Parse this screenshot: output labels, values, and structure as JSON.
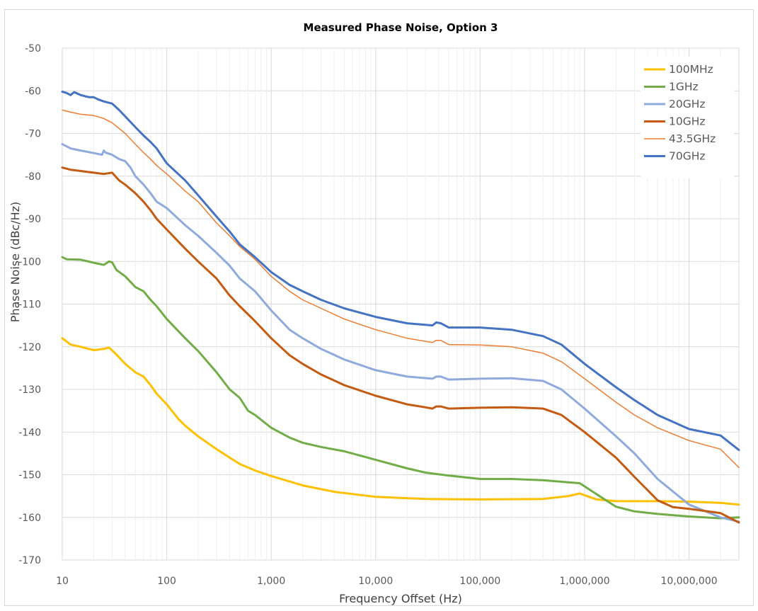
{
  "chart_data": {
    "type": "line",
    "title": "Measured Phase Noise, Option 3",
    "xlabel": "Frequency Offset (Hz)",
    "ylabel": "Phase Noise (dBc/Hz)",
    "x_scale": "log",
    "xlim": [
      10,
      30000000
    ],
    "ylim": [
      -170,
      -50
    ],
    "x_tick_values": [
      10,
      100,
      1000,
      10000,
      100000,
      1000000,
      10000000
    ],
    "x_tick_labels": [
      "10",
      "100",
      "1,000",
      "10,000",
      "100,000",
      "1,000,000",
      "10,000,000"
    ],
    "y_ticks": [
      -50,
      -60,
      -70,
      -80,
      -90,
      -100,
      -110,
      -120,
      -130,
      -140,
      -150,
      -160,
      -170
    ],
    "grid": true,
    "legend_position": "top-right",
    "series": [
      {
        "name": "100MHz",
        "color": "#ffc000",
        "width": 3,
        "points": [
          [
            10,
            -118
          ],
          [
            12,
            -119.5
          ],
          [
            15,
            -120
          ],
          [
            20,
            -120.8
          ],
          [
            25,
            -120.5
          ],
          [
            28,
            -120.2
          ],
          [
            32,
            -121.5
          ],
          [
            40,
            -124
          ],
          [
            50,
            -126
          ],
          [
            60,
            -127
          ],
          [
            70,
            -129
          ],
          [
            80,
            -131
          ],
          [
            100,
            -133.5
          ],
          [
            130,
            -137
          ],
          [
            150,
            -138.5
          ],
          [
            200,
            -141
          ],
          [
            300,
            -144
          ],
          [
            400,
            -146
          ],
          [
            500,
            -147.5
          ],
          [
            700,
            -149
          ],
          [
            1000,
            -150.3
          ],
          [
            2000,
            -152.5
          ],
          [
            4000,
            -154
          ],
          [
            10000,
            -155.2
          ],
          [
            30000,
            -155.7
          ],
          [
            100000,
            -155.8
          ],
          [
            400000,
            -155.7
          ],
          [
            700000,
            -155
          ],
          [
            900000,
            -154.4
          ],
          [
            1000000,
            -154.8
          ],
          [
            1300000,
            -155.8
          ],
          [
            2000000,
            -156.2
          ],
          [
            5000000,
            -156.2
          ],
          [
            10000000,
            -156.3
          ],
          [
            20000000,
            -156.6
          ],
          [
            30000000,
            -157
          ]
        ]
      },
      {
        "name": "1GHz",
        "color": "#70ad47",
        "width": 3,
        "points": [
          [
            10,
            -99
          ],
          [
            11,
            -99.5
          ],
          [
            15,
            -99.6
          ],
          [
            20,
            -100.3
          ],
          [
            25,
            -100.8
          ],
          [
            28,
            -100
          ],
          [
            30,
            -100.2
          ],
          [
            33,
            -102
          ],
          [
            40,
            -103.5
          ],
          [
            50,
            -106
          ],
          [
            60,
            -107
          ],
          [
            70,
            -109
          ],
          [
            80,
            -110.5
          ],
          [
            100,
            -113.5
          ],
          [
            150,
            -118
          ],
          [
            200,
            -121
          ],
          [
            300,
            -126
          ],
          [
            400,
            -130
          ],
          [
            500,
            -132
          ],
          [
            600,
            -135
          ],
          [
            700,
            -136
          ],
          [
            1000,
            -139
          ],
          [
            1500,
            -141.3
          ],
          [
            2000,
            -142.5
          ],
          [
            3000,
            -143.5
          ],
          [
            5000,
            -144.5
          ],
          [
            10000,
            -146.5
          ],
          [
            20000,
            -148.5
          ],
          [
            30000,
            -149.5
          ],
          [
            50000,
            -150.2
          ],
          [
            100000,
            -151
          ],
          [
            200000,
            -151
          ],
          [
            400000,
            -151.3
          ],
          [
            700000,
            -151.8
          ],
          [
            900000,
            -152
          ],
          [
            1200000,
            -154
          ],
          [
            2000000,
            -157.5
          ],
          [
            3000000,
            -158.6
          ],
          [
            5000000,
            -159.2
          ],
          [
            10000000,
            -159.8
          ],
          [
            20000000,
            -160.2
          ],
          [
            30000000,
            -160
          ]
        ]
      },
      {
        "name": "20GHz",
        "color": "#8faadc",
        "width": 3,
        "points": [
          [
            10,
            -72.5
          ],
          [
            12,
            -73.5
          ],
          [
            15,
            -74
          ],
          [
            20,
            -74.6
          ],
          [
            24,
            -75
          ],
          [
            25,
            -74
          ],
          [
            26,
            -74.5
          ],
          [
            30,
            -75
          ],
          [
            35,
            -76
          ],
          [
            40,
            -76.5
          ],
          [
            45,
            -78
          ],
          [
            50,
            -80
          ],
          [
            60,
            -82
          ],
          [
            70,
            -84
          ],
          [
            80,
            -86
          ],
          [
            100,
            -87.5
          ],
          [
            150,
            -91.5
          ],
          [
            200,
            -94
          ],
          [
            300,
            -98
          ],
          [
            400,
            -101
          ],
          [
            500,
            -104
          ],
          [
            700,
            -107
          ],
          [
            1000,
            -111.5
          ],
          [
            1500,
            -116
          ],
          [
            2000,
            -118
          ],
          [
            3000,
            -120.5
          ],
          [
            5000,
            -123
          ],
          [
            10000,
            -125.5
          ],
          [
            20000,
            -127
          ],
          [
            35000,
            -127.5
          ],
          [
            38000,
            -127
          ],
          [
            42000,
            -127
          ],
          [
            50000,
            -127.7
          ],
          [
            100000,
            -127.5
          ],
          [
            200000,
            -127.4
          ],
          [
            400000,
            -128
          ],
          [
            600000,
            -130
          ],
          [
            1000000,
            -134.5
          ],
          [
            2000000,
            -141
          ],
          [
            3000000,
            -145
          ],
          [
            5000000,
            -151
          ],
          [
            10000000,
            -157
          ],
          [
            20000000,
            -160
          ],
          [
            30000000,
            -161
          ]
        ]
      },
      {
        "name": "10GHz",
        "color": "#c55a11",
        "width": 3,
        "points": [
          [
            10,
            -78
          ],
          [
            12,
            -78.5
          ],
          [
            15,
            -78.8
          ],
          [
            20,
            -79.2
          ],
          [
            25,
            -79.5
          ],
          [
            30,
            -79.2
          ],
          [
            35,
            -81
          ],
          [
            40,
            -82
          ],
          [
            50,
            -84
          ],
          [
            60,
            -86
          ],
          [
            70,
            -88
          ],
          [
            80,
            -90
          ],
          [
            100,
            -92.5
          ],
          [
            150,
            -97
          ],
          [
            200,
            -100
          ],
          [
            300,
            -104
          ],
          [
            400,
            -108
          ],
          [
            500,
            -110.5
          ],
          [
            700,
            -114
          ],
          [
            1000,
            -118
          ],
          [
            1500,
            -122
          ],
          [
            2000,
            -124
          ],
          [
            3000,
            -126.5
          ],
          [
            5000,
            -129
          ],
          [
            10000,
            -131.5
          ],
          [
            20000,
            -133.5
          ],
          [
            30000,
            -134.2
          ],
          [
            35000,
            -134.5
          ],
          [
            38000,
            -134
          ],
          [
            42000,
            -134
          ],
          [
            50000,
            -134.5
          ],
          [
            100000,
            -134.3
          ],
          [
            200000,
            -134.2
          ],
          [
            400000,
            -134.5
          ],
          [
            600000,
            -136
          ],
          [
            1000000,
            -140
          ],
          [
            2000000,
            -146
          ],
          [
            3000000,
            -150.5
          ],
          [
            5000000,
            -156
          ],
          [
            7000000,
            -157.6
          ],
          [
            10000000,
            -158
          ],
          [
            20000000,
            -159
          ],
          [
            30000000,
            -161.2
          ]
        ]
      },
      {
        "name": "43.5GHz",
        "color": "#ed7d31",
        "width": 1.5,
        "points": [
          [
            10,
            -64.5
          ],
          [
            12,
            -65
          ],
          [
            15,
            -65.5
          ],
          [
            20,
            -65.8
          ],
          [
            25,
            -66.5
          ],
          [
            30,
            -67.5
          ],
          [
            40,
            -70
          ],
          [
            50,
            -72.5
          ],
          [
            60,
            -74.5
          ],
          [
            70,
            -76
          ],
          [
            80,
            -77.5
          ],
          [
            100,
            -79.5
          ],
          [
            150,
            -83.5
          ],
          [
            200,
            -86
          ],
          [
            300,
            -91
          ],
          [
            400,
            -94
          ],
          [
            500,
            -96.5
          ],
          [
            700,
            -99.5
          ],
          [
            1000,
            -103.5
          ],
          [
            1500,
            -107
          ],
          [
            2000,
            -109
          ],
          [
            3000,
            -111
          ],
          [
            5000,
            -113.5
          ],
          [
            10000,
            -116
          ],
          [
            20000,
            -118
          ],
          [
            35000,
            -119
          ],
          [
            38000,
            -118.5
          ],
          [
            42000,
            -118.5
          ],
          [
            50000,
            -119.5
          ],
          [
            100000,
            -119.6
          ],
          [
            200000,
            -120
          ],
          [
            400000,
            -121.5
          ],
          [
            600000,
            -123.5
          ],
          [
            1000000,
            -127.5
          ],
          [
            2000000,
            -133
          ],
          [
            3000000,
            -136
          ],
          [
            5000000,
            -139
          ],
          [
            10000000,
            -142
          ],
          [
            20000000,
            -144
          ],
          [
            30000000,
            -148.3
          ]
        ]
      },
      {
        "name": "70GHz",
        "color": "#4472c4",
        "width": 3,
        "points": [
          [
            10,
            -60.2
          ],
          [
            11,
            -60.5
          ],
          [
            12,
            -61
          ],
          [
            13,
            -60.3
          ],
          [
            15,
            -61
          ],
          [
            18,
            -61.5
          ],
          [
            20,
            -61.5
          ],
          [
            22,
            -62
          ],
          [
            25,
            -62.5
          ],
          [
            30,
            -63
          ],
          [
            35,
            -64.5
          ],
          [
            40,
            -66
          ],
          [
            50,
            -68.5
          ],
          [
            60,
            -70.5
          ],
          [
            70,
            -72
          ],
          [
            80,
            -73.5
          ],
          [
            100,
            -77
          ],
          [
            150,
            -81
          ],
          [
            200,
            -84.5
          ],
          [
            300,
            -89.5
          ],
          [
            400,
            -93
          ],
          [
            500,
            -96
          ],
          [
            700,
            -99
          ],
          [
            1000,
            -102.5
          ],
          [
            1500,
            -105.5
          ],
          [
            2000,
            -107
          ],
          [
            3000,
            -109
          ],
          [
            5000,
            -111
          ],
          [
            10000,
            -113
          ],
          [
            20000,
            -114.5
          ],
          [
            35000,
            -115
          ],
          [
            38000,
            -114.3
          ],
          [
            42000,
            -114.5
          ],
          [
            50000,
            -115.5
          ],
          [
            100000,
            -115.5
          ],
          [
            200000,
            -116
          ],
          [
            400000,
            -117.5
          ],
          [
            600000,
            -119.5
          ],
          [
            1000000,
            -124
          ],
          [
            2000000,
            -129.5
          ],
          [
            3000000,
            -132.5
          ],
          [
            5000000,
            -136
          ],
          [
            10000000,
            -139.3
          ],
          [
            20000000,
            -140.8
          ],
          [
            30000000,
            -144.2
          ]
        ]
      }
    ]
  }
}
